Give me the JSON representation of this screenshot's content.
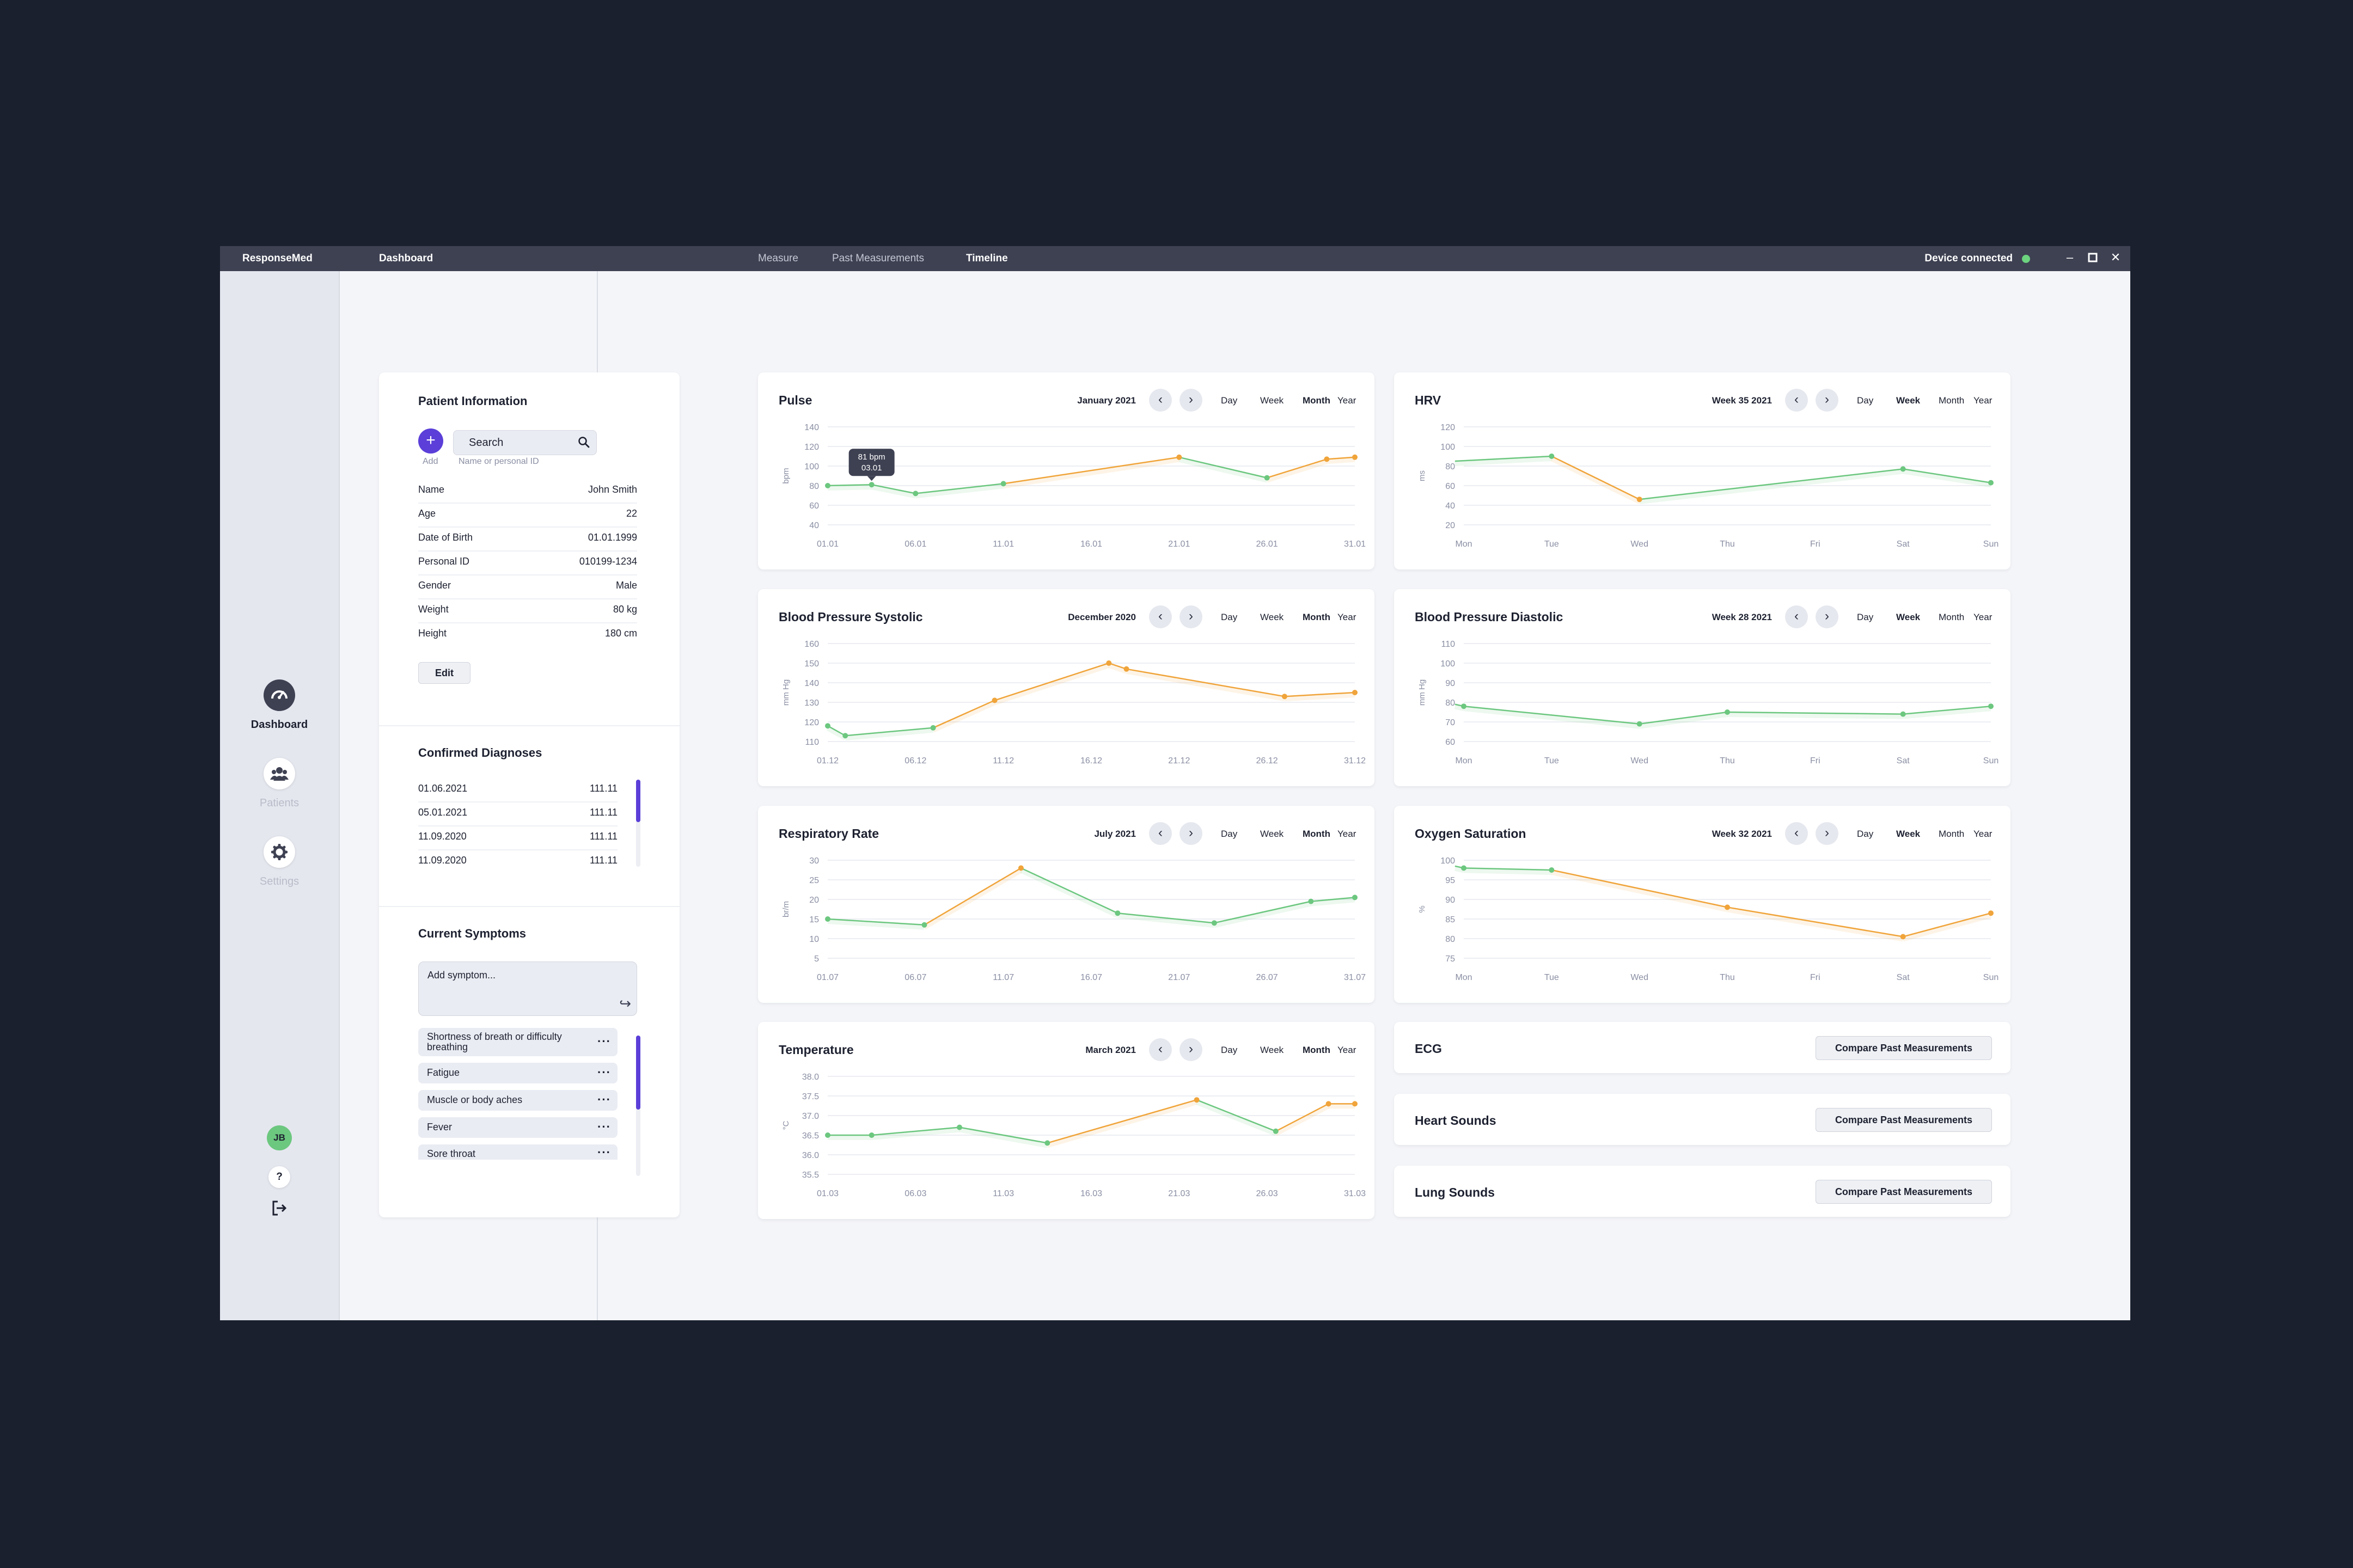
{
  "app": {
    "name": "ResponseMed",
    "section": "Dashboard",
    "tabs": [
      {
        "label": "Measure",
        "active": false
      },
      {
        "label": "Past Measurements",
        "active": false
      },
      {
        "label": "Timeline",
        "active": true
      }
    ],
    "device_status": "Device connected",
    "device_status_color": "#6cd37f"
  },
  "sidebar": {
    "items": [
      {
        "label": "Dashboard",
        "icon": "speedometer-icon",
        "active": true
      },
      {
        "label": "Patients",
        "icon": "patients-icon",
        "active": false
      },
      {
        "label": "Settings",
        "icon": "gear-icon",
        "active": false
      }
    ],
    "user_initials": "JB",
    "help_label": "?"
  },
  "patient_info": {
    "title": "Patient Information",
    "add_label": "Add",
    "search_placeholder": "Search",
    "search_hint": "Name or personal ID",
    "fields": [
      {
        "label": "Name",
        "value": "John Smith"
      },
      {
        "label": "Age",
        "value": "22"
      },
      {
        "label": "Date of Birth",
        "value": "01.01.1999"
      },
      {
        "label": "Personal ID",
        "value": "010199-1234"
      },
      {
        "label": "Gender",
        "value": "Male"
      },
      {
        "label": "Weight",
        "value": "80 kg"
      },
      {
        "label": "Height",
        "value": "180 cm"
      }
    ],
    "edit_label": "Edit"
  },
  "diagnoses": {
    "title": "Confirmed Diagnoses",
    "rows": [
      {
        "date": "01.06.2021",
        "code": "111.11"
      },
      {
        "date": "05.01.2021",
        "code": "111.11"
      },
      {
        "date": "11.09.2020",
        "code": "111.11"
      },
      {
        "date": "11.09.2020",
        "code": "111.11"
      }
    ]
  },
  "symptoms": {
    "title": "Current Symptoms",
    "placeholder": "Add symptom...",
    "items": [
      "Shortness of breath or difficulty breathing",
      "Fatigue",
      "Muscle or body aches",
      "Fever",
      "Sore throat"
    ]
  },
  "range_tabs": [
    "Day",
    "Week",
    "Month",
    "Year"
  ],
  "colors": {
    "accent": "#5b3fd8",
    "normal": "#6cc77f",
    "warning": "#f0a43a"
  },
  "chart_data": [
    {
      "id": "pulse",
      "type": "line",
      "title": "Pulse",
      "period": "January 2021",
      "active_range": "Month",
      "ylabel": "bpm",
      "ylim": [
        40,
        140
      ],
      "yticks": [
        140,
        120,
        100,
        80,
        60,
        40
      ],
      "xticks": [
        "01.01",
        "06.01",
        "11.01",
        "16.01",
        "21.01",
        "26.01",
        "31.01"
      ],
      "x": [
        1,
        3.5,
        6,
        11,
        21,
        26,
        29.4,
        31
      ],
      "values": [
        80,
        81,
        72,
        82,
        109,
        88,
        107,
        109
      ],
      "status": [
        "n",
        "n",
        "n",
        "n",
        "w",
        "n",
        "w",
        "w"
      ],
      "tooltip": {
        "index": 1,
        "lines": [
          "81 bpm",
          "03.01"
        ]
      }
    },
    {
      "id": "hrv",
      "type": "line",
      "title": "HRV",
      "period": "Week 35 2021",
      "active_range": "Week",
      "ylabel": "ms",
      "ylim": [
        20,
        120
      ],
      "yticks": [
        120,
        100,
        80,
        60,
        40,
        20
      ],
      "xticks": [
        "Mon",
        "Tue",
        "Wed",
        "Thu",
        "Fri",
        "Sat",
        "Sun"
      ],
      "x": [
        -0.1,
        1,
        2,
        5,
        6
      ],
      "values": [
        85,
        90,
        46,
        77,
        63
      ],
      "status": [
        "n",
        "n",
        "w",
        "n",
        "n"
      ]
    },
    {
      "id": "bp_sys",
      "type": "line",
      "title": "Blood Pressure Systolic",
      "period": "December 2020",
      "active_range": "Month",
      "ylabel": "mm Hg",
      "ylim": [
        110,
        160
      ],
      "yticks": [
        160,
        150,
        140,
        130,
        120,
        110
      ],
      "xticks": [
        "01.12",
        "06.12",
        "11.12",
        "16.12",
        "21.12",
        "26.12",
        "31.12"
      ],
      "x": [
        1,
        2,
        7,
        10.5,
        17,
        18,
        27,
        31
      ],
      "values": [
        118,
        113,
        117,
        131,
        150,
        147,
        133,
        135
      ],
      "status": [
        "n",
        "n",
        "n",
        "w",
        "w",
        "w",
        "w",
        "w"
      ]
    },
    {
      "id": "bp_dia",
      "type": "line",
      "title": "Blood Pressure Diastolic",
      "period": "Week 28 2021",
      "active_range": "Week",
      "ylabel": "mm Hg",
      "ylim": [
        60,
        110
      ],
      "yticks": [
        110,
        100,
        90,
        80,
        70,
        60
      ],
      "xticks": [
        "Mon",
        "Tue",
        "Wed",
        "Thu",
        "Fri",
        "Sat",
        "Sun"
      ],
      "x": [
        -0.1,
        0,
        2,
        3,
        5,
        6
      ],
      "values": [
        79,
        78,
        69,
        75,
        74,
        78
      ],
      "status": [
        "n",
        "n",
        "n",
        "n",
        "n",
        "n"
      ]
    },
    {
      "id": "resp",
      "type": "line",
      "title": "Respiratory Rate",
      "period": "July 2021",
      "active_range": "Month",
      "ylabel": "br/m",
      "ylim": [
        5,
        30
      ],
      "yticks": [
        30,
        25,
        20,
        15,
        10,
        5
      ],
      "xticks": [
        "01.07",
        "06.07",
        "11.07",
        "16.07",
        "21.07",
        "26.07",
        "31.07"
      ],
      "x": [
        1,
        6.5,
        12,
        17.5,
        23,
        28.5,
        31
      ],
      "values": [
        15,
        13.5,
        28,
        16.5,
        14,
        19.5,
        20.5
      ],
      "status": [
        "n",
        "n",
        "w",
        "n",
        "n",
        "n",
        "n"
      ]
    },
    {
      "id": "spo2",
      "type": "line",
      "title": "Oxygen Saturation",
      "period": "Week 32 2021",
      "active_range": "Week",
      "ylabel": "%",
      "ylim": [
        75,
        100
      ],
      "yticks": [
        100,
        95,
        90,
        85,
        80,
        75
      ],
      "xticks": [
        "Mon",
        "Tue",
        "Wed",
        "Thu",
        "Fri",
        "Sat",
        "Sun"
      ],
      "x": [
        -0.1,
        0,
        1,
        3,
        5,
        6
      ],
      "values": [
        98.5,
        98,
        97.5,
        88,
        80.5,
        86.5
      ],
      "status": [
        "n",
        "n",
        "n",
        "w",
        "w",
        "w"
      ]
    },
    {
      "id": "temp",
      "type": "line",
      "title": "Temperature",
      "period": "March 2021",
      "active_range": "Month",
      "ylabel": "°C",
      "ylim": [
        35.5,
        38.0
      ],
      "yticks": [
        38.0,
        37.5,
        37.0,
        36.5,
        36.0,
        35.5
      ],
      "xticks": [
        "01.03",
        "06.03",
        "11.03",
        "16.03",
        "21.03",
        "26.03",
        "31.03"
      ],
      "x": [
        1,
        3.5,
        8.5,
        13.5,
        22,
        26.5,
        29.5,
        31
      ],
      "values": [
        36.5,
        36.5,
        36.7,
        36.3,
        37.4,
        36.6,
        37.3,
        37.3
      ],
      "status": [
        "n",
        "n",
        "n",
        "n",
        "w",
        "n",
        "w",
        "w"
      ]
    }
  ],
  "recordings": [
    {
      "title": "ECG",
      "button": "Compare Past Measurements"
    },
    {
      "title": "Heart Sounds",
      "button": "Compare Past Measurements"
    },
    {
      "title": "Lung Sounds",
      "button": "Compare Past Measurements"
    }
  ]
}
